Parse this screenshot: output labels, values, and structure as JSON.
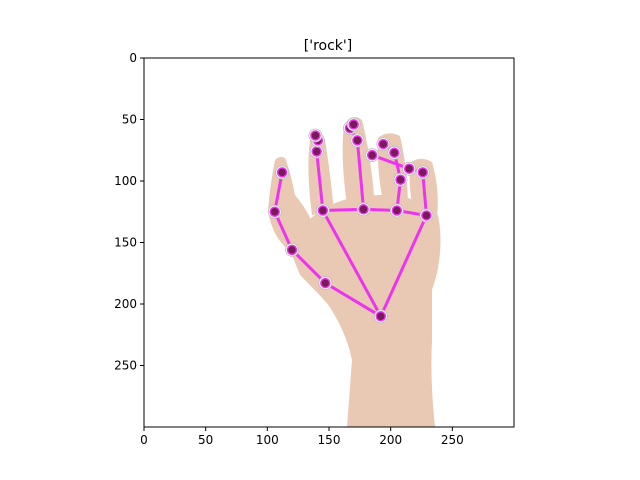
{
  "title": "['rock']",
  "axes": {
    "xlim": [
      0,
      300
    ],
    "ylim": [
      300,
      0
    ],
    "x_ticks": [
      0,
      50,
      100,
      150,
      200,
      250
    ],
    "y_ticks": [
      0,
      50,
      100,
      150,
      200,
      250
    ]
  },
  "landmark_color": "#7a1a5a",
  "connection_color": "#ee33ee",
  "landmarks": [
    {
      "id": 0,
      "x": 192,
      "y": 210
    },
    {
      "id": 1,
      "x": 147,
      "y": 183
    },
    {
      "id": 2,
      "x": 120,
      "y": 156
    },
    {
      "id": 3,
      "x": 106,
      "y": 125
    },
    {
      "id": 4,
      "x": 112,
      "y": 93
    },
    {
      "id": 5,
      "x": 145,
      "y": 124
    },
    {
      "id": 6,
      "x": 140,
      "y": 76
    },
    {
      "id": 7,
      "x": 141,
      "y": 67
    },
    {
      "id": 8,
      "x": 139,
      "y": 63
    },
    {
      "id": 9,
      "x": 178,
      "y": 123
    },
    {
      "id": 10,
      "x": 173,
      "y": 67
    },
    {
      "id": 11,
      "x": 167,
      "y": 57
    },
    {
      "id": 12,
      "x": 170,
      "y": 54
    },
    {
      "id": 13,
      "x": 205,
      "y": 124
    },
    {
      "id": 14,
      "x": 208,
      "y": 99
    },
    {
      "id": 15,
      "x": 203,
      "y": 77
    },
    {
      "id": 16,
      "x": 194,
      "y": 70
    },
    {
      "id": 17,
      "x": 229,
      "y": 128
    },
    {
      "id": 18,
      "x": 226,
      "y": 93
    },
    {
      "id": 19,
      "x": 215,
      "y": 90
    },
    {
      "id": 20,
      "x": 185,
      "y": 79
    }
  ],
  "connections": [
    [
      0,
      1
    ],
    [
      1,
      2
    ],
    [
      2,
      3
    ],
    [
      3,
      4
    ],
    [
      0,
      5
    ],
    [
      5,
      6
    ],
    [
      6,
      7
    ],
    [
      7,
      8
    ],
    [
      5,
      9
    ],
    [
      9,
      10
    ],
    [
      10,
      11
    ],
    [
      11,
      12
    ],
    [
      9,
      13
    ],
    [
      13,
      14
    ],
    [
      14,
      15
    ],
    [
      15,
      16
    ],
    [
      13,
      17
    ],
    [
      0,
      17
    ],
    [
      17,
      18
    ],
    [
      18,
      19
    ],
    [
      19,
      20
    ]
  ]
}
